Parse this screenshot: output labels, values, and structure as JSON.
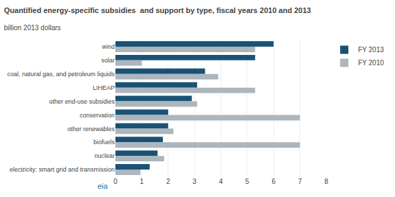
{
  "chart_data": {
    "type": "bar",
    "orientation": "horizontal",
    "title": "Quantified energy-specific subsidies  and support by type, fiscal years 2010 and 2013",
    "subtitle": "billion 2013 dollars",
    "categories": [
      "wind",
      "solar",
      "coal, natural gas, and petroleum liquids",
      "LIHEAP",
      "other end-use subsidies",
      "conservation",
      "other renewables",
      "biofuels",
      "nuclear",
      "electricity: smart grid and transmission"
    ],
    "series": [
      {
        "name": "FY 2013",
        "color": "#1a5276",
        "values": [
          6.0,
          5.3,
          3.4,
          3.1,
          2.9,
          2.0,
          2.0,
          1.8,
          1.6,
          1.3
        ]
      },
      {
        "name": "FY 2010",
        "color": "#adb5bd",
        "values": [
          5.3,
          1.0,
          3.9,
          5.3,
          3.1,
          7.0,
          2.2,
          7.0,
          1.85,
          0.95
        ]
      }
    ],
    "xlim": [
      0,
      8
    ],
    "xticks": [
      0,
      1,
      2,
      3,
      4,
      5,
      6,
      7,
      8
    ],
    "grid": true,
    "legend": "right",
    "annotations": [
      {
        "text": "eia",
        "color": "#1a6fa5"
      }
    ]
  }
}
